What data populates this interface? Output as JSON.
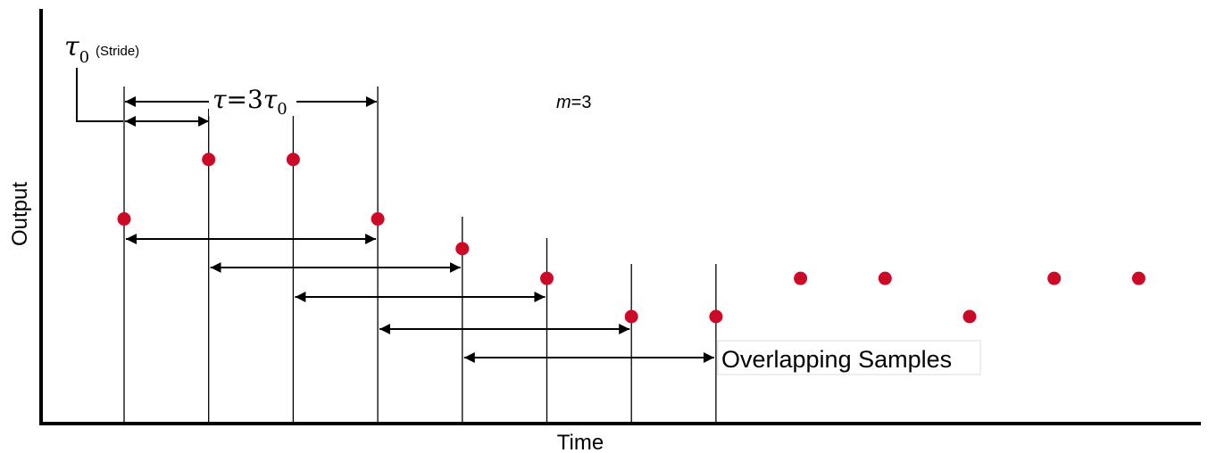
{
  "axes": {
    "xlabel": "Time",
    "ylabel": "Output"
  },
  "labels": {
    "stride_symbol": "τ",
    "stride_subscript": "0",
    "stride_text": "(Stride)",
    "tau_symbol": "τ",
    "tau_eq": "=3",
    "tau0_symbol": "τ",
    "tau0_subscript": "0",
    "m_symbol": "m",
    "m_value": "=3",
    "overlap_text": "Overlapping Samples"
  },
  "colors": {
    "point": "#cc0a27",
    "line": "#000000"
  },
  "samples": [
    {
      "index": 0,
      "level": 0.48
    },
    {
      "index": 1,
      "level": 0.62
    },
    {
      "index": 2,
      "level": 0.62
    },
    {
      "index": 3,
      "level": 0.48
    },
    {
      "index": 4,
      "level": 0.41
    },
    {
      "index": 5,
      "level": 0.34
    },
    {
      "index": 6,
      "level": 0.25
    },
    {
      "index": 7,
      "level": 0.25
    },
    {
      "index": 8,
      "level": 0.34
    },
    {
      "index": 9,
      "level": 0.34
    },
    {
      "index": 10,
      "level": 0.25
    },
    {
      "index": 11,
      "level": 0.34
    },
    {
      "index": 12,
      "level": 0.34
    }
  ],
  "overlap_pairs": [
    {
      "from": 0,
      "to": 3
    },
    {
      "from": 1,
      "to": 4
    },
    {
      "from": 2,
      "to": 5
    },
    {
      "from": 3,
      "to": 6
    },
    {
      "from": 4,
      "to": 7
    }
  ]
}
